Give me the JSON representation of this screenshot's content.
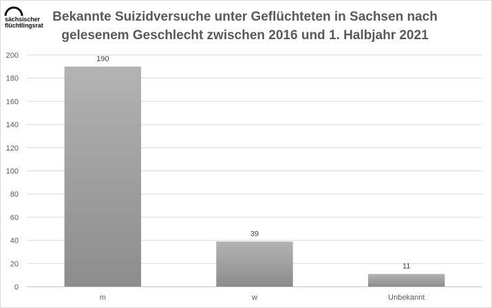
{
  "logo": {
    "line1": "sächsischer",
    "line2": "flüchtlingsrat"
  },
  "chart_data": {
    "type": "bar",
    "title": "Bekannte Suizidversuche unter Geflüchteten in Sachsen nach gelesenem Geschlecht zwischen 2016 und 1. Halbjahr 2021",
    "categories": [
      "m",
      "w",
      "Unbekannt"
    ],
    "values": [
      190,
      39,
      11
    ],
    "ylim": [
      0,
      200
    ],
    "yticks": [
      0,
      20,
      40,
      60,
      80,
      100,
      120,
      140,
      160,
      180,
      200
    ],
    "xlabel": "",
    "ylabel": "",
    "grid": true,
    "legend": "none",
    "bar_color": "#a6a6a6"
  }
}
